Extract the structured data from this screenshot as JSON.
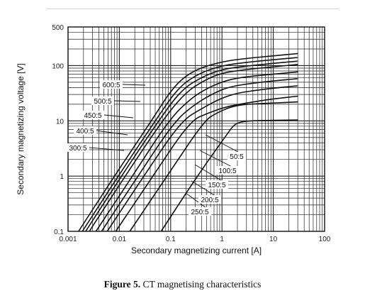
{
  "chart_data": {
    "type": "line",
    "xlabel": "Secondary magnetizing current [A]",
    "ylabel": "Secondary magnetizing voltage [V]",
    "x_scale": "log",
    "y_scale": "log",
    "xlim": [
      0.001,
      100
    ],
    "ylim": [
      0.1,
      500
    ],
    "x_ticks": [
      {
        "value": 0.001,
        "label": "0.001"
      },
      {
        "value": 0.01,
        "label": "0.01"
      },
      {
        "value": 0.1,
        "label": "0.1"
      },
      {
        "value": 1,
        "label": "1"
      },
      {
        "value": 10,
        "label": "10"
      },
      {
        "value": 100,
        "label": "100"
      }
    ],
    "y_ticks": [
      {
        "value": 0.1,
        "label": "0.1"
      },
      {
        "value": 1,
        "label": "1"
      },
      {
        "value": 10,
        "label": "10"
      },
      {
        "value": 100,
        "label": "100"
      },
      {
        "value": 500,
        "label": "500"
      }
    ],
    "grid": true,
    "series": [
      {
        "name": "600:5",
        "points": [
          [
            0.0016,
            0.1
          ],
          [
            0.008,
            1.0
          ],
          [
            0.042,
            10
          ],
          [
            0.12,
            45
          ],
          [
            0.3,
            85
          ],
          [
            1,
            118
          ],
          [
            3,
            135
          ],
          [
            10,
            150
          ],
          [
            30,
            165
          ]
        ]
      },
      {
        "name": "500:5",
        "points": [
          [
            0.0019,
            0.1
          ],
          [
            0.0095,
            1.0
          ],
          [
            0.05,
            10
          ],
          [
            0.14,
            40
          ],
          [
            0.35,
            72
          ],
          [
            1,
            100
          ],
          [
            3,
            115
          ],
          [
            10,
            128
          ],
          [
            30,
            140
          ]
        ]
      },
      {
        "name": "450:5",
        "points": [
          [
            0.0022,
            0.1
          ],
          [
            0.011,
            1.0
          ],
          [
            0.058,
            10
          ],
          [
            0.16,
            36
          ],
          [
            0.4,
            62
          ],
          [
            1,
            86
          ],
          [
            3,
            98
          ],
          [
            10,
            110
          ],
          [
            30,
            120
          ]
        ]
      },
      {
        "name": "400:5",
        "points": [
          [
            0.0026,
            0.1
          ],
          [
            0.013,
            1.0
          ],
          [
            0.068,
            10
          ],
          [
            0.19,
            32
          ],
          [
            0.45,
            54
          ],
          [
            1,
            74
          ],
          [
            3,
            85
          ],
          [
            10,
            95
          ],
          [
            30,
            105
          ]
        ]
      },
      {
        "name": "300:5",
        "points": [
          [
            0.0035,
            0.1
          ],
          [
            0.018,
            1.0
          ],
          [
            0.09,
            10
          ],
          [
            0.25,
            26
          ],
          [
            0.6,
            42
          ],
          [
            1.3,
            55
          ],
          [
            3,
            63
          ],
          [
            10,
            70
          ],
          [
            30,
            77
          ]
        ]
      },
      {
        "name": "250:5",
        "points": [
          [
            0.0045,
            0.1
          ],
          [
            0.023,
            1.0
          ],
          [
            0.12,
            10
          ],
          [
            0.32,
            21
          ],
          [
            0.75,
            33
          ],
          [
            1.5,
            42
          ],
          [
            4,
            48
          ],
          [
            10,
            53
          ],
          [
            30,
            58
          ]
        ]
      },
      {
        "name": "200:5",
        "points": [
          [
            0.0058,
            0.1
          ],
          [
            0.03,
            1.0
          ],
          [
            0.16,
            10
          ],
          [
            0.42,
            17
          ],
          [
            0.9,
            25
          ],
          [
            2,
            32
          ],
          [
            5,
            36
          ],
          [
            10,
            39
          ],
          [
            30,
            43
          ]
        ]
      },
      {
        "name": "150:5",
        "points": [
          [
            0.0085,
            0.1
          ],
          [
            0.045,
            1.0
          ],
          [
            0.24,
            10
          ],
          [
            0.55,
            14
          ],
          [
            1.2,
            18
          ],
          [
            3,
            21
          ],
          [
            10,
            25
          ],
          [
            30,
            28
          ]
        ]
      },
      {
        "name": "100:5",
        "points": [
          [
            0.016,
            0.1
          ],
          [
            0.085,
            1.0
          ],
          [
            0.45,
            10
          ],
          [
            0.8,
            14
          ],
          [
            1.5,
            18
          ],
          [
            3,
            20
          ],
          [
            10,
            21
          ],
          [
            30,
            22
          ]
        ]
      },
      {
        "name": "50:5",
        "points": [
          [
            0.065,
            0.1
          ],
          [
            0.33,
            1.0
          ],
          [
            1.3,
            6
          ],
          [
            1.8,
            9
          ],
          [
            3,
            10
          ],
          [
            10,
            10.2
          ],
          [
            30,
            10.4
          ]
        ]
      }
    ]
  },
  "caption": {
    "label": "Figure 5.",
    "text": " CT magnetising characteristics"
  }
}
